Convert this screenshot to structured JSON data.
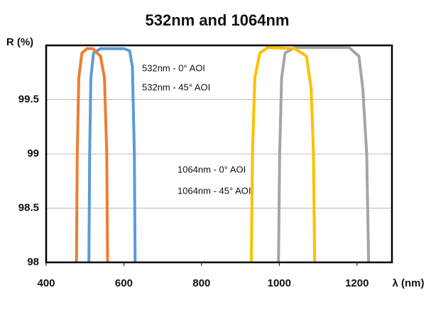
{
  "chart_data": {
    "type": "line",
    "title": "532nm and 1064nm",
    "y_label": "R (%)",
    "x_label": "λ (nm)",
    "xlim": [
      400,
      1290
    ],
    "xticks": [
      400,
      600,
      800,
      1000,
      1200
    ],
    "ylim": [
      98,
      100
    ],
    "yticks": [
      98,
      98.5,
      99,
      99.5
    ],
    "grid": true,
    "series": [
      {
        "name": "532nm - 0° AOI",
        "color": "#5b9bd5",
        "x": [
          510,
          512,
          515,
          522,
          540,
          600,
          615,
          622,
          627,
          629
        ],
        "values": [
          98,
          99,
          99.7,
          99.93,
          99.97,
          99.97,
          99.95,
          99.8,
          99,
          98
        ]
      },
      {
        "name": "532nm - 45° AOI",
        "color": "#ed7d31",
        "x": [
          478,
          480,
          484,
          492,
          505,
          520,
          540,
          550,
          556,
          558
        ],
        "values": [
          98,
          99,
          99.7,
          99.93,
          99.97,
          99.97,
          99.9,
          99.7,
          99,
          98
        ]
      },
      {
        "name": "1064nm - 0° AOI",
        "color": "#a5a5a5",
        "x": [
          998,
          1001,
          1006,
          1015,
          1040,
          1180,
          1205,
          1215,
          1225,
          1230
        ],
        "values": [
          98,
          99,
          99.7,
          99.93,
          99.98,
          99.98,
          99.9,
          99.6,
          99,
          98
        ]
      },
      {
        "name": "1064nm - 45° AOI",
        "color": "#ffc000",
        "x": [
          928,
          931,
          937,
          950,
          970,
          1040,
          1070,
          1082,
          1088,
          1091
        ],
        "values": [
          98,
          99,
          99.7,
          99.93,
          99.98,
          99.97,
          99.9,
          99.6,
          99,
          98
        ]
      }
    ]
  }
}
